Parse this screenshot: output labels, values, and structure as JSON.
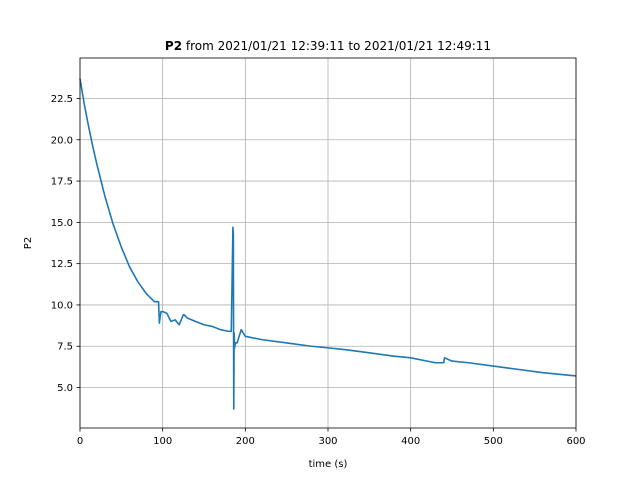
{
  "chart_data": {
    "type": "line",
    "title_bold": "P2",
    "title_rest": " from 2021/01/21 12:39:11 to 2021/01/21 12:49:11",
    "xlabel": "time (s)",
    "ylabel": "P2",
    "xlim": [
      0,
      600
    ],
    "ylim": [
      2.55,
      24.95
    ],
    "xticks": [
      0,
      100,
      200,
      300,
      400,
      500,
      600
    ],
    "yticks": [
      5.0,
      7.5,
      10.0,
      12.5,
      15.0,
      17.5,
      20.0,
      22.5
    ],
    "ytick_labels": [
      "5.0",
      "7.5",
      "10.0",
      "12.5",
      "15.0",
      "17.5",
      "20.0",
      "22.5"
    ],
    "grid": true,
    "color": "#1f77b4",
    "series": [
      {
        "x": [
          0,
          5,
          10,
          15,
          20,
          25,
          30,
          40,
          50,
          60,
          70,
          80,
          90,
          95,
          96,
          97,
          98,
          100,
          105,
          110,
          115,
          120,
          125,
          126,
          130,
          140,
          150,
          160,
          170,
          180,
          183,
          185,
          185.5,
          186,
          186.5,
          187,
          188,
          190,
          195,
          200,
          220,
          250,
          280,
          300,
          320,
          350,
          380,
          400,
          420,
          430,
          440,
          441,
          450,
          470,
          500,
          530,
          560,
          580,
          600
        ],
        "y": [
          23.7,
          22.2,
          20.9,
          19.7,
          18.6,
          17.6,
          16.6,
          14.9,
          13.5,
          12.3,
          11.4,
          10.7,
          10.2,
          10.2,
          8.9,
          9.3,
          9.6,
          9.6,
          9.5,
          9.0,
          9.1,
          8.8,
          9.4,
          9.4,
          9.2,
          9.0,
          8.8,
          8.7,
          8.5,
          8.4,
          8.4,
          14.7,
          14.3,
          3.7,
          8.3,
          7.4,
          7.7,
          7.7,
          8.5,
          8.1,
          7.9,
          7.7,
          7.5,
          7.4,
          7.3,
          7.1,
          6.9,
          6.8,
          6.6,
          6.5,
          6.5,
          6.8,
          6.6,
          6.5,
          6.3,
          6.1,
          5.9,
          5.8,
          5.7
        ]
      }
    ]
  }
}
